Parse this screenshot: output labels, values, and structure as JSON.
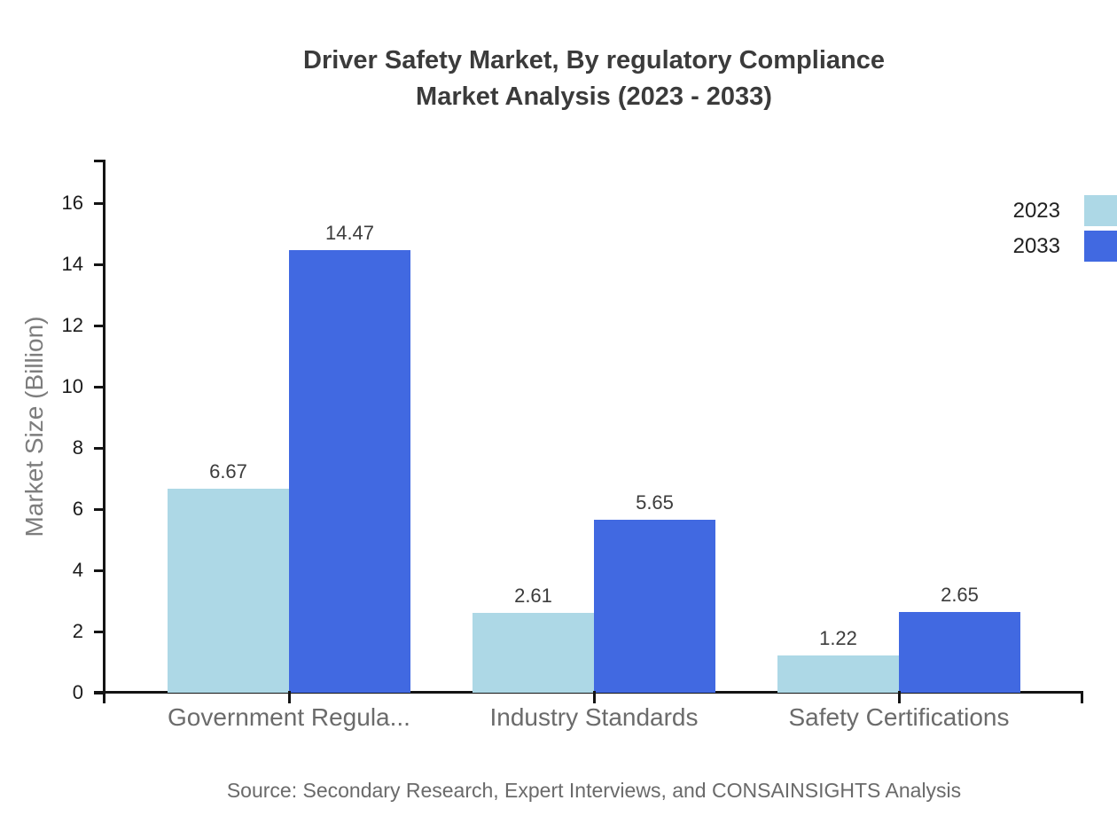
{
  "title": {
    "line1": "Driver Safety Market, By regulatory Compliance",
    "line2": "Market Analysis (2023 - 2033)"
  },
  "source_note": "Source: Secondary Research, Expert Interviews, and CONSAINSIGHTS Analysis",
  "chart_data": {
    "type": "bar",
    "categories": [
      "Government Regula...",
      "Industry Standards",
      "Safety Certifications"
    ],
    "series": [
      {
        "name": "2023",
        "color": "#add8e6",
        "values": [
          6.67,
          2.61,
          1.22
        ]
      },
      {
        "name": "2033",
        "color": "#4169e1",
        "values": [
          14.47,
          5.65,
          2.65
        ]
      }
    ],
    "title": "Driver Safety Market, By regulatory Compliance Market Analysis (2023 - 2033)",
    "xlabel": "",
    "ylabel": "Market Size (Billion)",
    "ylim": [
      0,
      16
    ],
    "yticks": [
      0,
      2,
      4,
      6,
      8,
      10,
      12,
      14,
      16
    ],
    "grid": false,
    "value_labels": true,
    "legend_position": "top-right",
    "axis_color": "#141414"
  }
}
